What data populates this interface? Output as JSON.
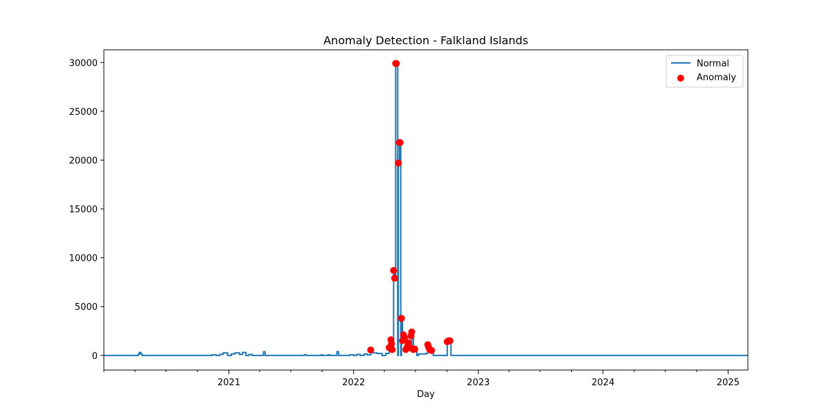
{
  "chart_data": {
    "type": "line",
    "title": "Anomaly Detection - Falkland Islands",
    "xlabel": "Day",
    "ylabel": "",
    "xlim": [
      "2020-01-01",
      "2025-02-28"
    ],
    "ylim": [
      -1500,
      31300
    ],
    "x_ticks": [
      "2021",
      "2022",
      "2023",
      "2024",
      "2025"
    ],
    "y_ticks": [
      0,
      5000,
      10000,
      15000,
      20000,
      25000,
      30000
    ],
    "grid": false,
    "legend_position": "top-right",
    "colors": {
      "normal": "#1f77b4",
      "anomaly": "#ff0000"
    },
    "series": [
      {
        "name": "Normal",
        "kind": "step-line",
        "points": [
          [
            "2020-01-01",
            0
          ],
          [
            "2020-04-10",
            0
          ],
          [
            "2020-04-11",
            150
          ],
          [
            "2020-04-14",
            300
          ],
          [
            "2020-04-18",
            150
          ],
          [
            "2020-04-22",
            0
          ],
          [
            "2020-11-10",
            0
          ],
          [
            "2020-11-12",
            60
          ],
          [
            "2020-11-25",
            0
          ],
          [
            "2020-12-05",
            100
          ],
          [
            "2020-12-15",
            250
          ],
          [
            "2020-12-28",
            0
          ],
          [
            "2021-01-08",
            150
          ],
          [
            "2021-01-18",
            250
          ],
          [
            "2021-02-01",
            100
          ],
          [
            "2021-02-10",
            300
          ],
          [
            "2021-02-20",
            0
          ],
          [
            "2021-03-01",
            100
          ],
          [
            "2021-03-10",
            0
          ],
          [
            "2021-04-10",
            0
          ],
          [
            "2021-04-12",
            380
          ],
          [
            "2021-04-17",
            0
          ],
          [
            "2021-08-08",
            0
          ],
          [
            "2021-08-10",
            80
          ],
          [
            "2021-08-16",
            0
          ],
          [
            "2021-09-26",
            0
          ],
          [
            "2021-09-28",
            60
          ],
          [
            "2021-10-02",
            0
          ],
          [
            "2021-10-16",
            0
          ],
          [
            "2021-10-18",
            60
          ],
          [
            "2021-10-22",
            0
          ],
          [
            "2021-11-11",
            0
          ],
          [
            "2021-11-13",
            380
          ],
          [
            "2021-11-18",
            0
          ],
          [
            "2021-12-18",
            0
          ],
          [
            "2021-12-20",
            60
          ],
          [
            "2022-01-01",
            0
          ],
          [
            "2022-01-10",
            100
          ],
          [
            "2022-01-20",
            0
          ],
          [
            "2022-02-01",
            150
          ],
          [
            "2022-02-10",
            50
          ],
          [
            "2022-02-20",
            550
          ],
          [
            "2022-02-25",
            250
          ],
          [
            "2022-03-10",
            200
          ],
          [
            "2022-03-25",
            0
          ],
          [
            "2022-04-05",
            200
          ],
          [
            "2022-04-15",
            800
          ],
          [
            "2022-04-20",
            1600
          ],
          [
            "2022-04-24",
            600
          ],
          [
            "2022-04-28",
            8700
          ],
          [
            "2022-05-01",
            7900
          ],
          [
            "2022-05-04",
            29900
          ],
          [
            "2022-05-10",
            0
          ],
          [
            "2022-05-12",
            19700
          ],
          [
            "2022-05-15",
            21800
          ],
          [
            "2022-05-19",
            0
          ],
          [
            "2022-05-21",
            3800
          ],
          [
            "2022-05-24",
            1500
          ],
          [
            "2022-05-27",
            2100
          ],
          [
            "2022-06-03",
            600
          ],
          [
            "2022-06-10",
            1300
          ],
          [
            "2022-06-16",
            800
          ],
          [
            "2022-06-20",
            2400
          ],
          [
            "2022-06-25",
            600
          ],
          [
            "2022-07-05",
            0
          ],
          [
            "2022-07-10",
            150
          ],
          [
            "2022-08-01",
            200
          ],
          [
            "2022-08-06",
            1100
          ],
          [
            "2022-08-12",
            600
          ],
          [
            "2022-08-22",
            0
          ],
          [
            "2022-09-30",
            0
          ],
          [
            "2022-10-02",
            1400
          ],
          [
            "2022-10-10",
            1500
          ],
          [
            "2022-10-13",
            0
          ],
          [
            "2025-02-28",
            0
          ]
        ]
      },
      {
        "name": "Anomaly",
        "kind": "scatter",
        "points": [
          [
            "2022-02-20",
            550
          ],
          [
            "2022-04-15",
            800
          ],
          [
            "2022-04-20",
            1600
          ],
          [
            "2022-04-22",
            1200
          ],
          [
            "2022-04-24",
            600
          ],
          [
            "2022-04-28",
            8700
          ],
          [
            "2022-05-01",
            7900
          ],
          [
            "2022-05-04",
            29900
          ],
          [
            "2022-05-06",
            29900
          ],
          [
            "2022-05-12",
            19700
          ],
          [
            "2022-05-15",
            21800
          ],
          [
            "2022-05-17",
            21800
          ],
          [
            "2022-05-21",
            3800
          ],
          [
            "2022-05-24",
            1500
          ],
          [
            "2022-05-27",
            2100
          ],
          [
            "2022-05-30",
            1800
          ],
          [
            "2022-06-03",
            600
          ],
          [
            "2022-06-07",
            900
          ],
          [
            "2022-06-10",
            1300
          ],
          [
            "2022-06-16",
            800
          ],
          [
            "2022-06-18",
            2000
          ],
          [
            "2022-06-20",
            2400
          ],
          [
            "2022-06-25",
            600
          ],
          [
            "2022-06-29",
            650
          ],
          [
            "2022-08-06",
            1100
          ],
          [
            "2022-08-09",
            800
          ],
          [
            "2022-08-12",
            600
          ],
          [
            "2022-08-17",
            500
          ],
          [
            "2022-10-02",
            1400
          ],
          [
            "2022-10-06",
            1500
          ],
          [
            "2022-10-10",
            1500
          ]
        ]
      }
    ]
  }
}
